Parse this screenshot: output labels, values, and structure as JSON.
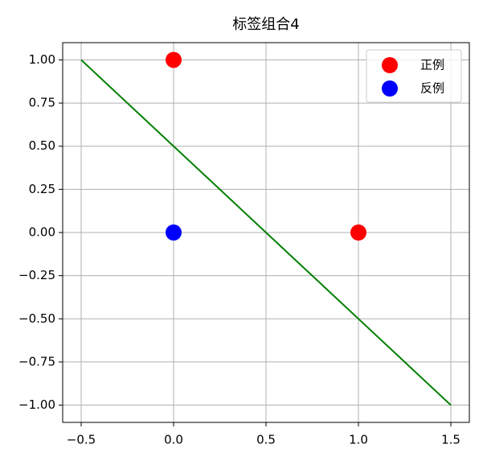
{
  "chart_data": {
    "type": "scatter",
    "title": "标签组合4",
    "series": [
      {
        "name": "正例",
        "color": "#ff0000",
        "x": [
          0,
          1
        ],
        "values": [
          1,
          0
        ]
      },
      {
        "name": "反例",
        "color": "#0000ff",
        "x": [
          0
        ],
        "values": [
          0
        ]
      }
    ],
    "line": {
      "color": "#008000",
      "x": [
        -0.5,
        1.5
      ],
      "values": [
        1,
        -1
      ]
    },
    "xlim": [
      -0.6,
      1.6
    ],
    "ylim": [
      -1.1,
      1.1
    ],
    "xticks": [
      {
        "value": -0.5,
        "label": "−0.5"
      },
      {
        "value": 0,
        "label": "0.0"
      },
      0.5,
      {
        "value": 1,
        "label": "1.0"
      },
      1.5
    ],
    "yticks": [
      {
        "value": -1,
        "label": "−1.00"
      },
      {
        "value": -0.75,
        "label": "−0.75"
      },
      {
        "value": -0.5,
        "label": "−0.50"
      },
      {
        "value": -0.25,
        "label": "−0.25"
      },
      {
        "value": 0,
        "label": "0.00"
      },
      0.25,
      {
        "value": 0.5,
        "label": "0.50"
      },
      0.75,
      {
        "value": 1,
        "label": "1.00"
      }
    ],
    "grid": true,
    "legend": "upper right"
  }
}
